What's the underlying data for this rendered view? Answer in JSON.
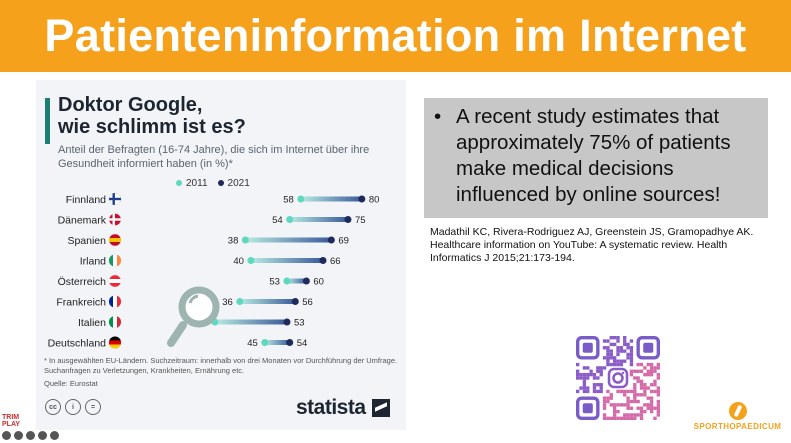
{
  "header": {
    "title": "Patienteninformation im Internet"
  },
  "infographic": {
    "title_line1": "Doktor Google,",
    "title_line2": "wie schlimm ist es?",
    "subtitle": "Anteil der Befragten (16-74 Jahre), die sich im Internet über ihre Gesundheit informiert haben (in %)*",
    "footnote": "* In ausgewählten EU-Ländern. Suchzeitraum: innerhalb von drei Monaten vor Durchführung der Umfrage. Suchanfragen zu Verletzungen, Krankheiten, Ernährung etc.",
    "source": "Quelle: Eurostat",
    "brand": "statista",
    "license_icons": [
      "cc-icon",
      "person-icon",
      "equals-icon"
    ]
  },
  "chart_data": {
    "type": "dumbbell",
    "title": "Doktor Google, wie schlimm ist es?",
    "subtitle": "Anteil der Befragten (16-74 Jahre), die sich im Internet über ihre Gesundheit informiert haben (in %)*",
    "categories": [
      "Finnland",
      "Dänemark",
      "Spanien",
      "Irland",
      "Österreich",
      "Frankreich",
      "Italien",
      "Deutschland"
    ],
    "series": [
      {
        "name": "2011",
        "values": [
          58,
          54,
          38,
          40,
          53,
          36,
          27,
          45
        ],
        "color": "#5fd8c0"
      },
      {
        "name": "2021",
        "values": [
          80,
          75,
          69,
          66,
          60,
          56,
          53,
          54
        ],
        "color": "#1e2a5e"
      }
    ],
    "xlim": [
      0,
      90
    ],
    "grid": false,
    "legend": "top"
  },
  "quote": {
    "bullet": "•",
    "text": "A recent study estimates that approximately 75% of patients make medical decisions influenced by online sources!"
  },
  "citation": "Madathil KC, Rivera-Rodriguez AJ, Greenstein JS, Gramopadhye AK. Healthcare information on YouTube: A systematic review. Health Informatics J 2015;21:173-194.",
  "brand": {
    "name": "SPORTHOPAEDICUM"
  },
  "corner_logo": {
    "line1": "TRIM",
    "line2": "PLAY"
  },
  "colors": {
    "accent": "#f5a11c",
    "dot_2011": "#5fd8c0",
    "dot_2021": "#1e2a5e"
  }
}
